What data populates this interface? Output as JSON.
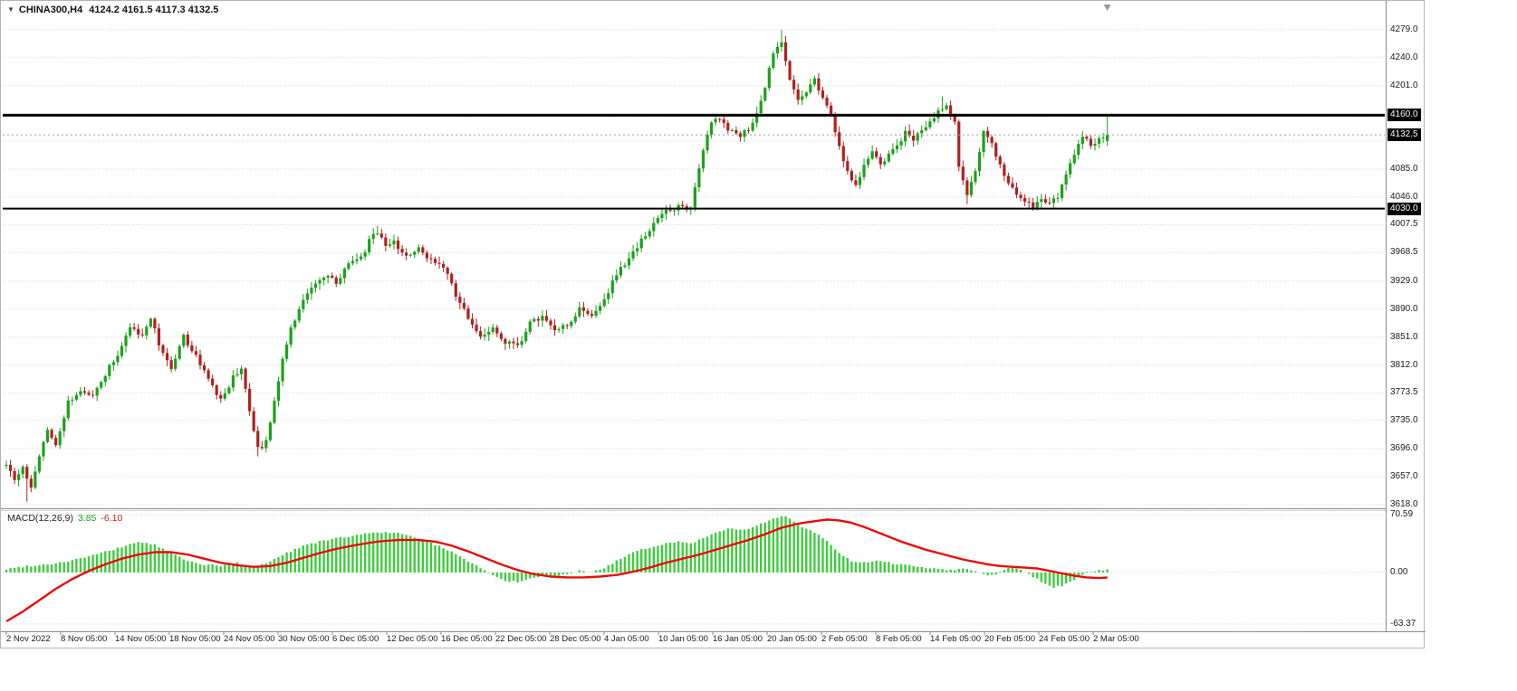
{
  "chart_data": {
    "type": "candlestick",
    "title": "CHINA300,H4",
    "title_symbol": "CHINA300,H4",
    "ohlc_text": "4124.2 4161.5 4117.3 4132.5",
    "symbol": "CHINA300",
    "timeframe": "H4",
    "last_bar": {
      "open": 4124.2,
      "high": 4161.5,
      "low": 4117.3,
      "close": 4132.5
    },
    "bid_price": 4132.5,
    "x_range_visible": [
      "2 Nov 2022",
      "2 Mar 05:00"
    ],
    "price_range_visible": [
      3618.0,
      4279.0
    ],
    "bars_count": 268,
    "price_axis": {
      "visible_labels": [
        "4279.0",
        "4240.0",
        "4201.0",
        "4085.0",
        "4046.0",
        "4007.5",
        "3968.5",
        "3929.0",
        "3890.0",
        "3851.0",
        "3812.0",
        "3773.5",
        "3735.0",
        "3696.0",
        "3657.0",
        "3618.0"
      ],
      "grid_prices": [
        4279,
        4240,
        4201,
        4162.5,
        4124,
        4085,
        4046,
        4007.5,
        3968.5,
        3929,
        3890,
        3851,
        3812,
        3773.5,
        3735,
        3696,
        3657,
        3618
      ],
      "badges": [
        {
          "price": 4160.0,
          "label": "4160.0",
          "kind": "hline"
        },
        {
          "price": 4132.5,
          "label": "4132.5",
          "kind": "bid"
        },
        {
          "price": 4030.0,
          "label": "4030.0",
          "kind": "hline"
        }
      ]
    },
    "horizontal_lines": [
      {
        "price": 4160.0,
        "width": 3
      },
      {
        "price": 4030.0,
        "width": 2
      }
    ],
    "time_labels": [
      "2 Nov 2022",
      "8 Nov 05:00",
      "14 Nov 05:00",
      "18 Nov 05:00",
      "24 Nov 05:00",
      "30 Nov 05:00",
      "6 Dec 05:00",
      "12 Dec 05:00",
      "16 Dec 05:00",
      "22 Dec 05:00",
      "28 Dec 05:00",
      "4 Jan 05:00",
      "10 Jan 05:00",
      "16 Jan 05:00",
      "20 Jan 05:00",
      "2 Feb 05:00",
      "8 Feb 05:00",
      "14 Feb 05:00",
      "20 Feb 05:00",
      "24 Feb 05:00",
      "2 Mar 05:00"
    ],
    "close_anchors": [
      [
        0,
        3672
      ],
      [
        2,
        3655
      ],
      [
        4,
        3668
      ],
      [
        6,
        3640
      ],
      [
        8,
        3688
      ],
      [
        10,
        3720
      ],
      [
        12,
        3698
      ],
      [
        15,
        3760
      ],
      [
        18,
        3778
      ],
      [
        21,
        3770
      ],
      [
        24,
        3800
      ],
      [
        27,
        3828
      ],
      [
        30,
        3862
      ],
      [
        33,
        3855
      ],
      [
        35,
        3880
      ],
      [
        37,
        3842
      ],
      [
        40,
        3808
      ],
      [
        43,
        3852
      ],
      [
        46,
        3825
      ],
      [
        49,
        3790
      ],
      [
        52,
        3762
      ],
      [
        55,
        3795
      ],
      [
        57,
        3810
      ],
      [
        59,
        3745
      ],
      [
        61,
        3695
      ],
      [
        63,
        3705
      ],
      [
        65,
        3765
      ],
      [
        67,
        3820
      ],
      [
        69,
        3862
      ],
      [
        72,
        3905
      ],
      [
        75,
        3928
      ],
      [
        78,
        3940
      ],
      [
        80,
        3925
      ],
      [
        83,
        3952
      ],
      [
        86,
        3960
      ],
      [
        88,
        3985
      ],
      [
        90,
        3998
      ],
      [
        92,
        3975
      ],
      [
        94,
        3985
      ],
      [
        97,
        3962
      ],
      [
        100,
        3975
      ],
      [
        103,
        3958
      ],
      [
        106,
        3950
      ],
      [
        109,
        3910
      ],
      [
        112,
        3878
      ],
      [
        115,
        3850
      ],
      [
        118,
        3862
      ],
      [
        121,
        3845
      ],
      [
        124,
        3838
      ],
      [
        127,
        3870
      ],
      [
        130,
        3880
      ],
      [
        133,
        3858
      ],
      [
        136,
        3868
      ],
      [
        139,
        3890
      ],
      [
        142,
        3878
      ],
      [
        145,
        3902
      ],
      [
        148,
        3940
      ],
      [
        151,
        3958
      ],
      [
        154,
        3985
      ],
      [
        157,
        4010
      ],
      [
        160,
        4025
      ],
      [
        163,
        4032
      ],
      [
        166,
        4028
      ],
      [
        167,
        4060
      ],
      [
        169,
        4110
      ],
      [
        171,
        4150
      ],
      [
        173,
        4155
      ],
      [
        175,
        4142
      ],
      [
        178,
        4130
      ],
      [
        181,
        4148
      ],
      [
        184,
        4200
      ],
      [
        186,
        4245
      ],
      [
        188,
        4262
      ],
      [
        190,
        4210
      ],
      [
        192,
        4180
      ],
      [
        194,
        4195
      ],
      [
        196,
        4208
      ],
      [
        198,
        4185
      ],
      [
        200,
        4160
      ],
      [
        202,
        4115
      ],
      [
        204,
        4080
      ],
      [
        206,
        4062
      ],
      [
        208,
        4090
      ],
      [
        210,
        4108
      ],
      [
        212,
        4090
      ],
      [
        215,
        4110
      ],
      [
        218,
        4135
      ],
      [
        220,
        4125
      ],
      [
        222,
        4140
      ],
      [
        224,
        4150
      ],
      [
        226,
        4168
      ],
      [
        228,
        4172
      ],
      [
        230,
        4150
      ],
      [
        231,
        4090
      ],
      [
        233,
        4047
      ],
      [
        235,
        4082
      ],
      [
        237,
        4135
      ],
      [
        239,
        4120
      ],
      [
        241,
        4090
      ],
      [
        243,
        4068
      ],
      [
        245,
        4050
      ],
      [
        247,
        4040
      ],
      [
        249,
        4034
      ],
      [
        251,
        4042
      ],
      [
        253,
        4038
      ],
      [
        255,
        4048
      ],
      [
        257,
        4075
      ],
      [
        259,
        4105
      ],
      [
        261,
        4128
      ],
      [
        263,
        4120
      ],
      [
        265,
        4126
      ],
      [
        267,
        4132.5
      ]
    ],
    "wick_overrides": {
      "high": {
        "90": 4006,
        "188": 4279,
        "227": 4186
      },
      "low": {
        "5": 3622,
        "61": 3685,
        "233": 4036,
        "249": 4027
      }
    },
    "macd": {
      "label": "MACD(12,26,9)",
      "value_main": "3.85",
      "value_signal": "-6.10",
      "axis_labels": [
        "70.59",
        "0.00",
        "-63.37"
      ],
      "grid_values": [
        70.59,
        0,
        -63.37
      ],
      "main_anchors": [
        [
          0,
          4
        ],
        [
          5,
          8
        ],
        [
          10,
          10
        ],
        [
          15,
          14
        ],
        [
          20,
          20
        ],
        [
          26,
          28
        ],
        [
          32,
          38
        ],
        [
          36,
          34
        ],
        [
          40,
          24
        ],
        [
          44,
          14
        ],
        [
          48,
          10
        ],
        [
          52,
          8
        ],
        [
          56,
          12
        ],
        [
          60,
          6
        ],
        [
          64,
          14
        ],
        [
          68,
          24
        ],
        [
          72,
          33
        ],
        [
          76,
          38
        ],
        [
          80,
          42
        ],
        [
          85,
          46
        ],
        [
          90,
          50
        ],
        [
          95,
          48
        ],
        [
          100,
          42
        ],
        [
          104,
          34
        ],
        [
          108,
          26
        ],
        [
          112,
          14
        ],
        [
          115,
          6
        ],
        [
          118,
          -4
        ],
        [
          121,
          -10
        ],
        [
          124,
          -12
        ],
        [
          127,
          -8
        ],
        [
          130,
          -4
        ],
        [
          133,
          -6
        ],
        [
          136,
          -2
        ],
        [
          139,
          2
        ],
        [
          142,
          0
        ],
        [
          145,
          6
        ],
        [
          148,
          14
        ],
        [
          151,
          22
        ],
        [
          154,
          28
        ],
        [
          157,
          32
        ],
        [
          160,
          36
        ],
        [
          163,
          38
        ],
        [
          166,
          36
        ],
        [
          169,
          42
        ],
        [
          172,
          50
        ],
        [
          175,
          54
        ],
        [
          178,
          52
        ],
        [
          181,
          55
        ],
        [
          184,
          62
        ],
        [
          187,
          68
        ],
        [
          189,
          70
        ],
        [
          191,
          62
        ],
        [
          193,
          56
        ],
        [
          195,
          52
        ],
        [
          197,
          46
        ],
        [
          199,
          38
        ],
        [
          201,
          28
        ],
        [
          203,
          20
        ],
        [
          205,
          14
        ],
        [
          208,
          12
        ],
        [
          211,
          14
        ],
        [
          214,
          12
        ],
        [
          217,
          10
        ],
        [
          220,
          8
        ],
        [
          223,
          6
        ],
        [
          226,
          5
        ],
        [
          229,
          3
        ],
        [
          232,
          5
        ],
        [
          235,
          2
        ],
        [
          238,
          -4
        ],
        [
          240,
          -2
        ],
        [
          242,
          4
        ],
        [
          244,
          7
        ],
        [
          246,
          4
        ],
        [
          248,
          -2
        ],
        [
          250,
          -8
        ],
        [
          252,
          -14
        ],
        [
          254,
          -18
        ],
        [
          256,
          -16
        ],
        [
          258,
          -12
        ],
        [
          260,
          -6
        ],
        [
          262,
          0
        ],
        [
          264,
          2
        ],
        [
          266,
          3
        ],
        [
          267,
          3.85
        ]
      ],
      "signal_anchors": [
        [
          0,
          -60
        ],
        [
          4,
          -48
        ],
        [
          8,
          -34
        ],
        [
          12,
          -20
        ],
        [
          16,
          -8
        ],
        [
          20,
          2
        ],
        [
          24,
          10
        ],
        [
          28,
          17
        ],
        [
          32,
          22
        ],
        [
          36,
          25
        ],
        [
          40,
          25
        ],
        [
          44,
          22
        ],
        [
          48,
          17
        ],
        [
          52,
          12
        ],
        [
          56,
          9
        ],
        [
          60,
          7
        ],
        [
          64,
          8
        ],
        [
          68,
          12
        ],
        [
          72,
          18
        ],
        [
          76,
          24
        ],
        [
          80,
          29
        ],
        [
          85,
          34
        ],
        [
          90,
          38
        ],
        [
          95,
          40
        ],
        [
          100,
          40
        ],
        [
          104,
          38
        ],
        [
          108,
          33
        ],
        [
          112,
          26
        ],
        [
          116,
          18
        ],
        [
          120,
          10
        ],
        [
          124,
          3
        ],
        [
          128,
          -2
        ],
        [
          132,
          -5
        ],
        [
          136,
          -6
        ],
        [
          140,
          -6
        ],
        [
          144,
          -5
        ],
        [
          148,
          -3
        ],
        [
          152,
          1
        ],
        [
          156,
          6
        ],
        [
          160,
          12
        ],
        [
          164,
          17
        ],
        [
          168,
          22
        ],
        [
          172,
          28
        ],
        [
          176,
          34
        ],
        [
          180,
          40
        ],
        [
          184,
          47
        ],
        [
          188,
          55
        ],
        [
          192,
          60
        ],
        [
          196,
          63
        ],
        [
          199,
          65
        ],
        [
          202,
          64
        ],
        [
          205,
          61
        ],
        [
          208,
          56
        ],
        [
          211,
          50
        ],
        [
          214,
          44
        ],
        [
          217,
          38
        ],
        [
          220,
          33
        ],
        [
          223,
          28
        ],
        [
          226,
          24
        ],
        [
          229,
          20
        ],
        [
          232,
          16
        ],
        [
          235,
          13
        ],
        [
          238,
          10
        ],
        [
          241,
          8
        ],
        [
          244,
          7
        ],
        [
          247,
          6
        ],
        [
          250,
          5
        ],
        [
          253,
          2
        ],
        [
          256,
          -1
        ],
        [
          259,
          -4
        ],
        [
          262,
          -6
        ],
        [
          265,
          -6.8
        ],
        [
          267,
          -6.1
        ]
      ]
    },
    "colors": {
      "bull": "#1ba11b",
      "bear": "#b02020",
      "histogram": "#3ecc3e",
      "signal_line": "#e80c0c",
      "hline": "#000000",
      "grid": "#d9d9d9",
      "badge_bg": "#000000",
      "badge_text": "#ffffff",
      "axis_text": "#1a1a1a",
      "bid_line": "#9a9a9a"
    }
  }
}
